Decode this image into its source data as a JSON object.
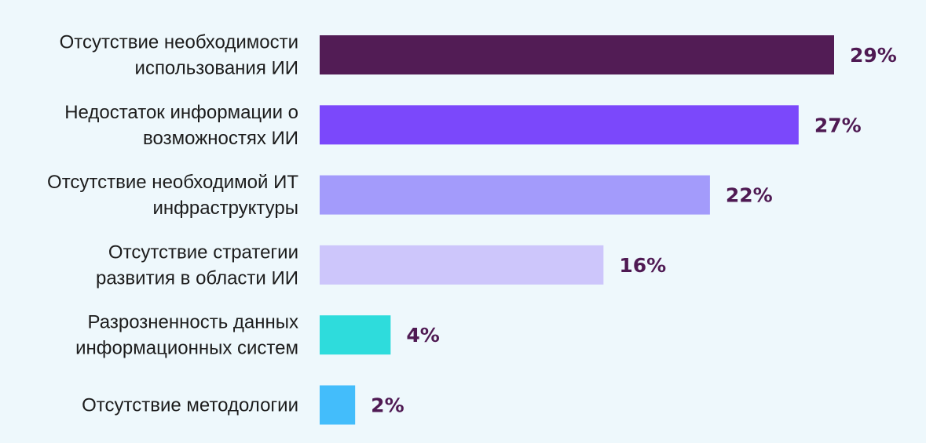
{
  "chart_data": {
    "type": "bar",
    "orientation": "horizontal",
    "categories": [
      [
        "Отсутствие необходимости",
        "использования ИИ"
      ],
      [
        "Недостаток информации о",
        "возможностях ИИ"
      ],
      [
        "Отсутствие необходимой ИТ",
        "инфраструктуры"
      ],
      [
        "Отсутствие стратегии",
        "развития в области ИИ"
      ],
      [
        "Разрозненность данных",
        "информационных систем"
      ],
      [
        "Отсутствие методологии"
      ]
    ],
    "values": [
      29,
      27,
      22,
      16,
      4,
      2
    ],
    "value_labels": [
      "29%",
      "27%",
      "22%",
      "16%",
      "4%",
      "2%"
    ],
    "colors": [
      "#521c55",
      "#7b48fb",
      "#a39bfb",
      "#cdc6fb",
      "#2edcdc",
      "#43bdfb"
    ],
    "value_label_color": "#4f1a53",
    "xlim": [
      0,
      29
    ],
    "grid": false,
    "legend": "none"
  }
}
